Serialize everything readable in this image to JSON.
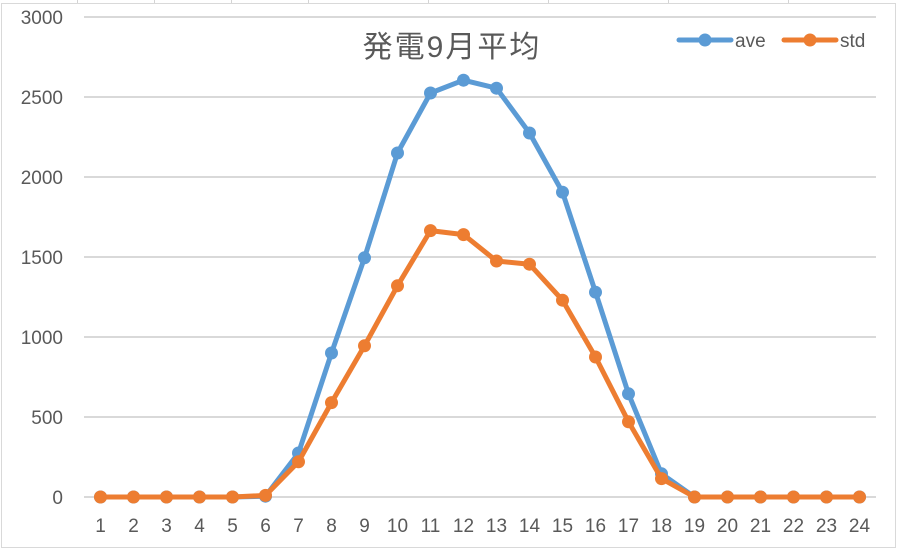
{
  "chart_data": {
    "type": "line",
    "title": "発電9月平均",
    "xlabel": "",
    "ylabel": "",
    "categories": [
      1,
      2,
      3,
      4,
      5,
      6,
      7,
      8,
      9,
      10,
      11,
      12,
      13,
      14,
      15,
      16,
      17,
      18,
      19,
      20,
      21,
      22,
      23,
      24
    ],
    "series": [
      {
        "name": "ave",
        "color": "#5b9bd5",
        "values": [
          0,
          0,
          0,
          0,
          0,
          5,
          275,
          900,
          1495,
          2150,
          2525,
          2605,
          2555,
          2275,
          1905,
          1280,
          645,
          145,
          0,
          0,
          0,
          0,
          0,
          0
        ]
      },
      {
        "name": "std",
        "color": "#ed7d31",
        "values": [
          0,
          0,
          0,
          0,
          0,
          10,
          220,
          590,
          945,
          1320,
          1665,
          1640,
          1475,
          1455,
          1230,
          875,
          470,
          115,
          0,
          0,
          0,
          0,
          0,
          0
        ]
      }
    ],
    "ylim": [
      0,
      3000
    ],
    "yticks": [
      0,
      500,
      1000,
      1500,
      2000,
      2500,
      3000
    ],
    "grid": true,
    "legend_position": "top-right"
  },
  "colors": {
    "grid": "#d9d9d9",
    "axis_text": "#595959",
    "title_text": "#595959"
  }
}
